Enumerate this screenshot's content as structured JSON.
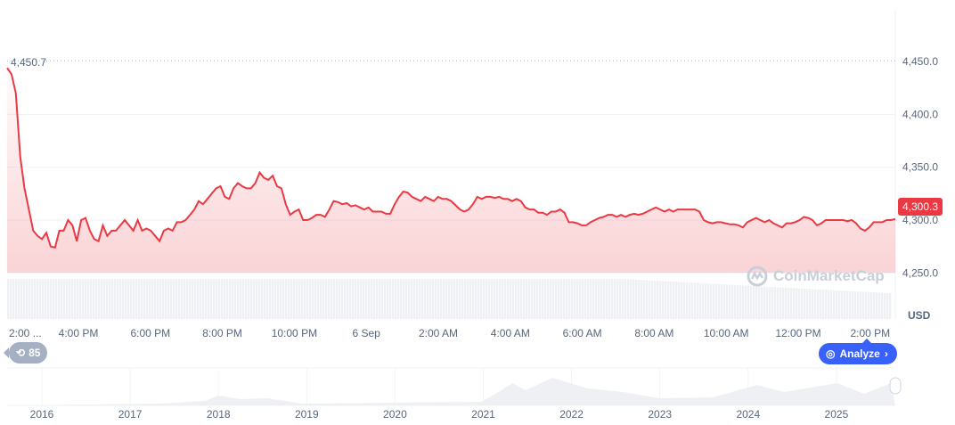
{
  "chart_data": {
    "type": "line",
    "ylabel": "USD",
    "ylim": [
      4225,
      4500
    ],
    "yticks": [
      "4,450.0",
      "4,400.0",
      "4,350.0",
      "4,300.0",
      "4,250.0"
    ],
    "ytick_values": [
      4450,
      4400,
      4350,
      4300,
      4250
    ],
    "xticks": [
      "2:00 ...",
      "4:00 PM",
      "6:00 PM",
      "8:00 PM",
      "10:00 PM",
      "6 Sep",
      "2:00 AM",
      "4:00 AM",
      "6:00 AM",
      "8:00 AM",
      "10:00 AM",
      "12:00 PM",
      "2:00 PM"
    ],
    "high_label": "4,450.7",
    "current_price": "4,300.3",
    "line_color": "#ea3943",
    "grid": true,
    "values": [
      4444,
      4438,
      4420,
      4360,
      4330,
      4310,
      4290,
      4285,
      4282,
      4288,
      4275,
      4274,
      4290,
      4290,
      4300,
      4295,
      4280,
      4300,
      4302,
      4290,
      4282,
      4280,
      4295,
      4285,
      4290,
      4290,
      4295,
      4300,
      4295,
      4290,
      4300,
      4290,
      4292,
      4290,
      4285,
      4280,
      4290,
      4292,
      4290,
      4298,
      4298,
      4300,
      4305,
      4310,
      4318,
      4315,
      4320,
      4325,
      4330,
      4332,
      4322,
      4320,
      4330,
      4335,
      4332,
      4330,
      4330,
      4335,
      4345,
      4340,
      4338,
      4342,
      4332,
      4330,
      4315,
      4305,
      4308,
      4310,
      4300,
      4300,
      4302,
      4305,
      4305,
      4303,
      4310,
      4318,
      4317,
      4315,
      4316,
      4313,
      4314,
      4312,
      4310,
      4312,
      4308,
      4308,
      4308,
      4306,
      4306,
      4315,
      4322,
      4327,
      4326,
      4322,
      4320,
      4318,
      4322,
      4320,
      4318,
      4322,
      4320,
      4320,
      4318,
      4314,
      4310,
      4308,
      4310,
      4315,
      4322,
      4320,
      4322,
      4322,
      4321,
      4322,
      4320,
      4320,
      4318,
      4320,
      4318,
      4312,
      4310,
      4310,
      4307,
      4307,
      4305,
      4308,
      4308,
      4310,
      4307,
      4298,
      4298,
      4297,
      4295,
      4295,
      4298,
      4300,
      4302,
      4303,
      4305,
      4305,
      4303,
      4305,
      4303,
      4305,
      4306,
      4305,
      4306,
      4308,
      4310,
      4312,
      4310,
      4308,
      4310,
      4308,
      4310,
      4310,
      4310,
      4310,
      4310,
      4308,
      4300,
      4298,
      4297,
      4298,
      4298,
      4297,
      4296,
      4296,
      4295,
      4293,
      4298,
      4300,
      4302,
      4300,
      4298,
      4300,
      4297,
      4295,
      4293,
      4297,
      4297,
      4298,
      4300,
      4303,
      4302,
      4300,
      4295,
      4297,
      4300,
      4300,
      4300,
      4300,
      4300,
      4299,
      4300,
      4297,
      4292,
      4290,
      4293,
      4298,
      4298,
      4298,
      4300,
      4300,
      4301
    ]
  },
  "navigator": {
    "years": [
      "2016",
      "2017",
      "2018",
      "2019",
      "2020",
      "2021",
      "2022",
      "2023",
      "2024",
      "2025"
    ]
  },
  "history_badge": "85",
  "analyze_label": "Analyze",
  "watermark": "CoinMarketCap"
}
